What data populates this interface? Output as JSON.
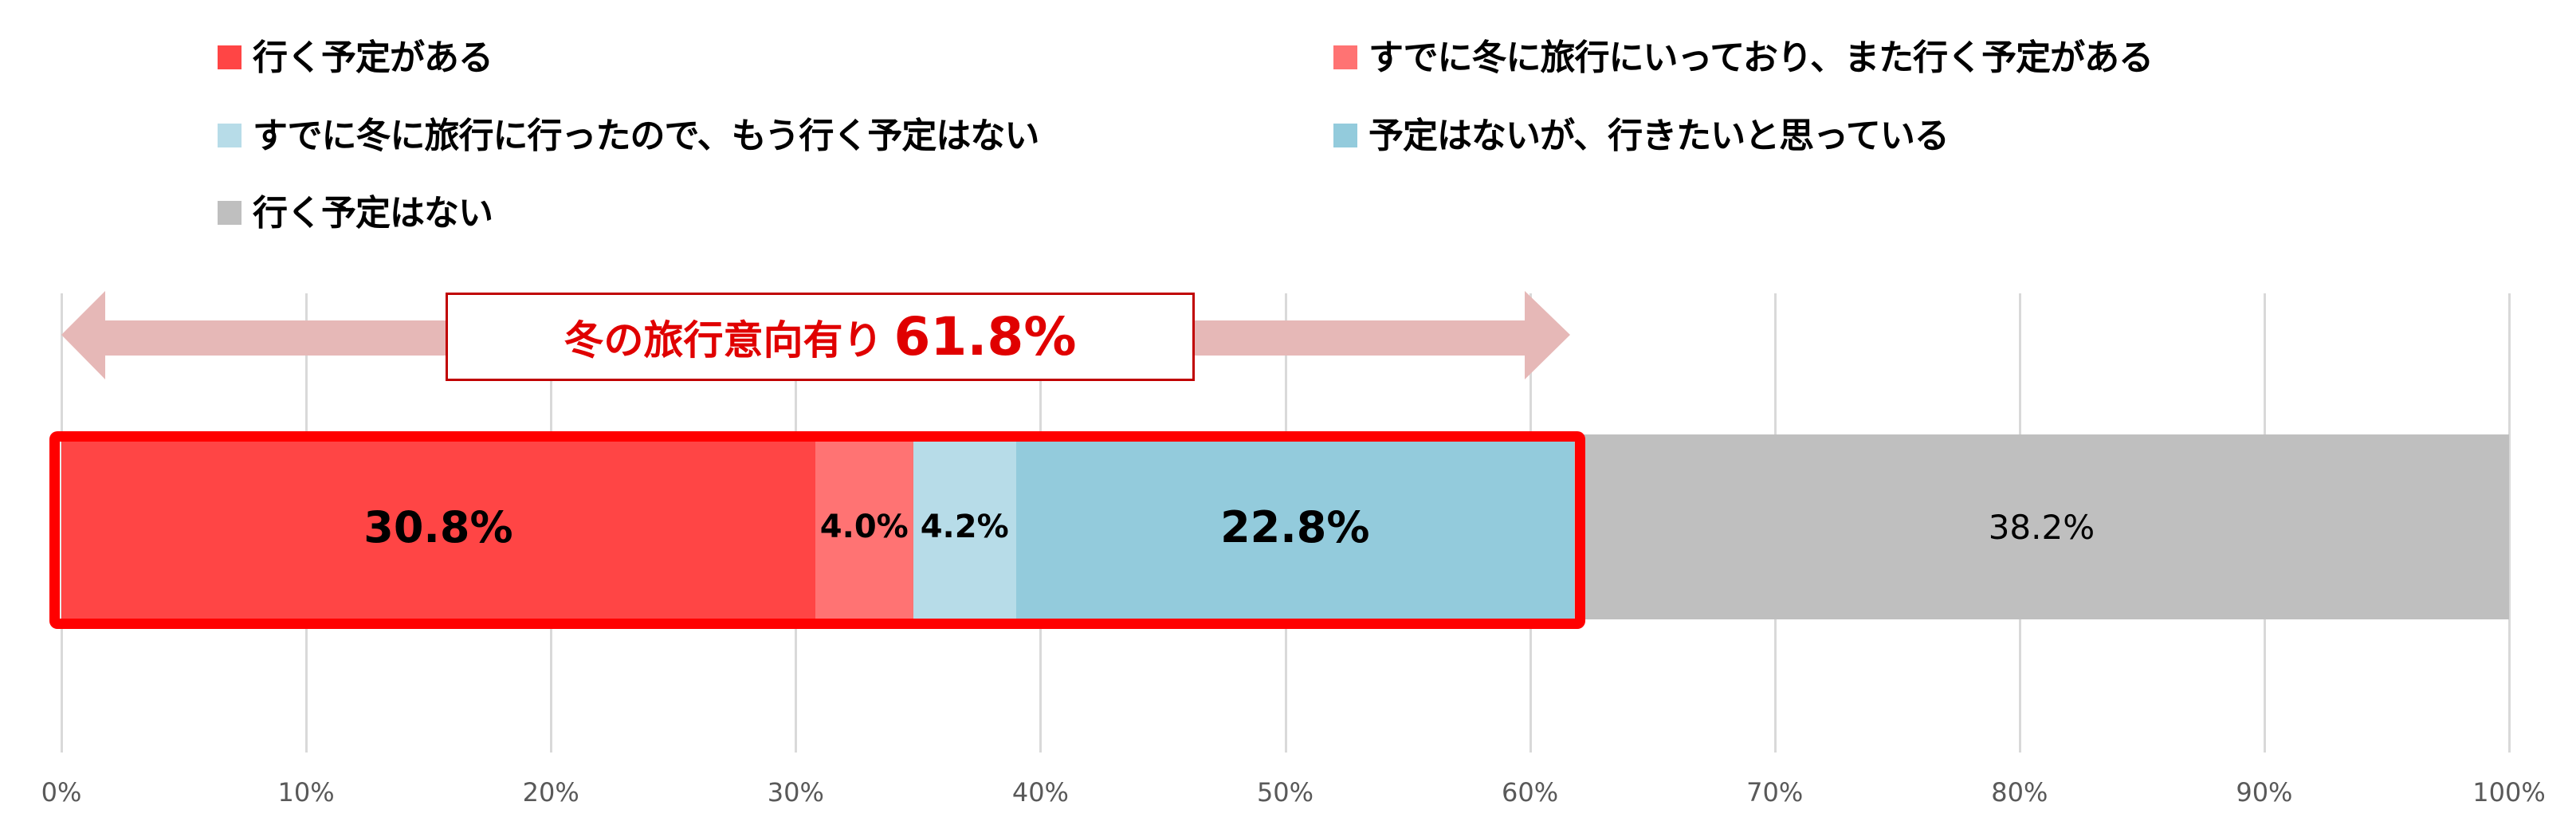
{
  "legend": [
    {
      "label": "行く予定がある",
      "color": "#ff4545"
    },
    {
      "label": "すでに冬に旅行にいっており、また行く予定がある",
      "color": "#ff7373"
    },
    {
      "label": "すでに冬に旅行に行ったので、もう行く予定はない",
      "color": "#b7dce8"
    },
    {
      "label": "予定はないが、行きたいと思っている",
      "color": "#93cbdc"
    },
    {
      "label": "行く予定はない",
      "color": "#bfbfbf"
    }
  ],
  "callout": {
    "label": "冬の旅行意向有り",
    "value": "61.8%",
    "arrow_color": "#e6b8b7",
    "border_color": "#c00000",
    "text_color": "#e00000"
  },
  "highlight_color": "#ff0000",
  "segments": [
    {
      "label": "30.8%",
      "value": 30.8,
      "color": "#ff4545",
      "bold": true,
      "size": 54
    },
    {
      "label": "4.0%",
      "value": 4.0,
      "color": "#ff7373",
      "bold": true,
      "size": 40
    },
    {
      "label": "4.2%",
      "value": 4.2,
      "color": "#b7dce8",
      "bold": true,
      "size": 40
    },
    {
      "label": "22.8%",
      "value": 22.8,
      "color": "#93cbdc",
      "bold": true,
      "size": 54
    },
    {
      "label": "38.2%",
      "value": 38.2,
      "color": "#bfbfbf",
      "bold": false,
      "size": 42
    }
  ],
  "axis": {
    "ticks": [
      "0%",
      "10%",
      "20%",
      "30%",
      "40%",
      "50%",
      "60%",
      "70%",
      "80%",
      "90%",
      "100%"
    ]
  },
  "chart_data": {
    "type": "bar",
    "orientation": "horizontal-stacked-100",
    "categories": [
      ""
    ],
    "series": [
      {
        "name": "行く予定がある",
        "values": [
          30.8
        ]
      },
      {
        "name": "すでに冬に旅行にいっており、また行く予定がある",
        "values": [
          4.0
        ]
      },
      {
        "name": "すでに冬に旅行に行ったので、もう行く予定はない",
        "values": [
          4.2
        ]
      },
      {
        "name": "予定はないが、行きたいと思っている",
        "values": [
          22.8
        ]
      },
      {
        "name": "行く予定はない",
        "values": [
          38.2
        ]
      }
    ],
    "title": "",
    "annotations": [
      "冬の旅行意向有り 61.8%"
    ],
    "xlabel": "",
    "ylabel": "",
    "xlim": [
      0,
      100
    ],
    "xticks": [
      "0%",
      "10%",
      "20%",
      "30%",
      "40%",
      "50%",
      "60%",
      "70%",
      "80%",
      "90%",
      "100%"
    ],
    "grid": "vertical",
    "legend_position": "top"
  }
}
